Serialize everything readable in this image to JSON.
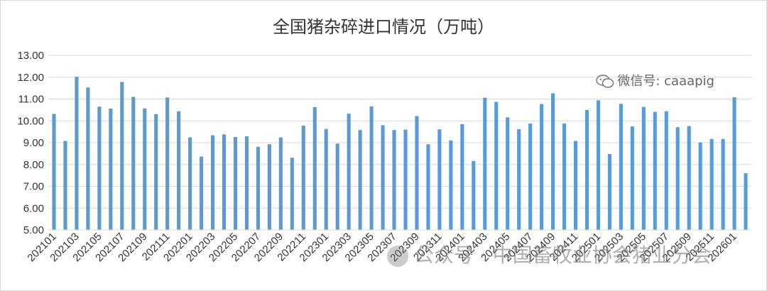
{
  "chart_data": {
    "type": "bar",
    "title": "全国猪杂碎进口情况（万吨）",
    "xlabel": "",
    "ylabel": "",
    "ylim": [
      5,
      13
    ],
    "yticks": [
      "5.00",
      "6.00",
      "7.00",
      "8.00",
      "9.00",
      "10.00",
      "11.00",
      "12.00",
      "13.00"
    ],
    "grid": true,
    "bar_color": "#5b9bd5",
    "categories": [
      "202101",
      "202102",
      "202103",
      "202104",
      "202105",
      "202106",
      "202107",
      "202108",
      "202109",
      "202110",
      "202111",
      "202112",
      "202201",
      "202202",
      "202203",
      "202204",
      "202205",
      "202206",
      "202207",
      "202208",
      "202209",
      "202210",
      "202211",
      "202212",
      "202301",
      "202302",
      "202303",
      "202304",
      "202305",
      "202306",
      "202307",
      "202308",
      "202309",
      "202310",
      "202311",
      "202312",
      "202401",
      "202402",
      "202403",
      "202404",
      "202405",
      "202406",
      "202407",
      "202408",
      "202409",
      "202410",
      "202411",
      "202412",
      "202501",
      "202502",
      "202503",
      "202504",
      "202505",
      "202506",
      "202507",
      "202508",
      "202509",
      "202510",
      "202511",
      "202512",
      "202601",
      "202602"
    ],
    "tick_labels": [
      "202101",
      "202103",
      "202105",
      "202107",
      "202109",
      "202111",
      "202201",
      "202203",
      "202205",
      "202207",
      "202209",
      "202211",
      "202301",
      "202303",
      "202305",
      "202307",
      "202309",
      "202311",
      "202401",
      "202403",
      "202405",
      "202407",
      "202409",
      "202411",
      "202501",
      "202503",
      "202505",
      "202507",
      "202509",
      "202511",
      "202601"
    ],
    "values": [
      10.32,
      9.08,
      12.02,
      11.53,
      10.65,
      10.56,
      11.78,
      11.1,
      10.57,
      10.31,
      11.07,
      10.44,
      9.24,
      8.36,
      9.34,
      9.38,
      9.26,
      9.29,
      8.81,
      8.93,
      9.24,
      8.31,
      9.78,
      10.63,
      9.63,
      8.96,
      10.33,
      9.58,
      10.66,
      9.8,
      9.58,
      9.6,
      10.22,
      8.93,
      9.61,
      9.1,
      9.85,
      8.16,
      11.06,
      10.87,
      10.16,
      9.62,
      9.88,
      10.77,
      11.26,
      9.88,
      9.08,
      10.5,
      10.94,
      8.48,
      10.78,
      9.74,
      10.64,
      10.41,
      10.44,
      9.71,
      9.76,
      9.01,
      9.17,
      9.17,
      11.08,
      7.6
    ]
  },
  "watermark": {
    "top": "微信号: caaapig",
    "bottom": "公众号 · 中国畜牧业协会猪业分会"
  }
}
